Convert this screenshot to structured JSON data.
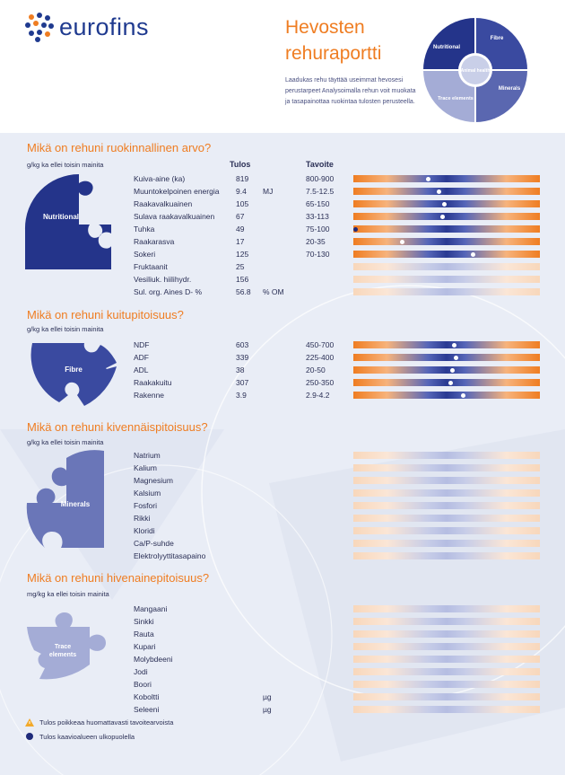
{
  "header": {
    "brand": "eurofins",
    "title_line1": "Hevosten",
    "title_line2": "rehuraportti",
    "description": "Laadukas rehu täyttää useimmat hevosesi perustarpeet Analysoimalla rehun voit muokata ja tasapainottaa ruokintaa tulosten perusteella.",
    "puzzle_labels": {
      "nutritional": "Nutritional",
      "fibre": "Fibre",
      "center": "Animal health",
      "minerals": "Minerals",
      "trace": "Trace elements"
    }
  },
  "nutrition": {
    "title": "Mikä on rehuni ruokinnallinen arvo?",
    "unit_note": "g/kg ka ellei toisin mainita",
    "col_result": "Tulos",
    "col_target": "Tavoite",
    "icon_label": "Nutritional",
    "rows": [
      {
        "name": "Kuiva-aine (ka)",
        "value": "819",
        "unit": "",
        "target": "800-900",
        "bar": "strong",
        "marker": 0.4,
        "out": false
      },
      {
        "name": "Muuntokelpoinen energia",
        "value": "9.4",
        "unit": "MJ",
        "target": "7.5-12.5",
        "bar": "strong",
        "marker": 0.46,
        "out": false
      },
      {
        "name": "Raakavalkuainen",
        "value": "105",
        "unit": "",
        "target": "65-150",
        "bar": "strong",
        "marker": 0.49,
        "out": false
      },
      {
        "name": "Sulava raakavalkuainen",
        "value": "67",
        "unit": "",
        "target": "33-113",
        "bar": "strong",
        "marker": 0.48,
        "out": false
      },
      {
        "name": "Tuhka",
        "value": "49",
        "unit": "",
        "target": "75-100",
        "bar": "strong",
        "marker": 0.01,
        "out": true
      },
      {
        "name": "Raakarasva",
        "value": "17",
        "unit": "",
        "target": "20-35",
        "bar": "strong",
        "marker": 0.26,
        "out": false
      },
      {
        "name": "Sokeri",
        "value": "125",
        "unit": "",
        "target": "70-130",
        "bar": "strong",
        "marker": 0.64,
        "out": false
      },
      {
        "name": "Fruktaanit",
        "value": "25",
        "unit": "",
        "target": "",
        "bar": "faint",
        "marker": null,
        "out": false
      },
      {
        "name": "Vesiliuk. hiilihydr.",
        "value": "156",
        "unit": "",
        "target": "",
        "bar": "faint",
        "marker": null,
        "out": false
      },
      {
        "name": "Sul. org. Aines D- %",
        "value": "56.8",
        "unit": "% OM",
        "target": "",
        "bar": "faint",
        "marker": null,
        "out": false
      }
    ]
  },
  "fibre": {
    "title": "Mikä on rehuni kuitupitoisuus?",
    "unit_note": "g/kg ka ellei toisin mainita",
    "icon_label": "Fibre",
    "rows": [
      {
        "name": "NDF",
        "value": "603",
        "unit": "",
        "target": "450-700",
        "bar": "strong",
        "marker": 0.54,
        "out": false
      },
      {
        "name": "ADF",
        "value": "339",
        "unit": "",
        "target": "225-400",
        "bar": "strong",
        "marker": 0.55,
        "out": false
      },
      {
        "name": "ADL",
        "value": "38",
        "unit": "",
        "target": "20-50",
        "bar": "strong",
        "marker": 0.53,
        "out": false
      },
      {
        "name": "Raakakuitu",
        "value": "307",
        "unit": "",
        "target": "250-350",
        "bar": "strong",
        "marker": 0.52,
        "out": false
      },
      {
        "name": "Rakenne",
        "value": "3.9",
        "unit": "",
        "target": "2.9-4.2",
        "bar": "strong",
        "marker": 0.59,
        "out": false
      }
    ]
  },
  "minerals": {
    "title": "Mikä on rehuni kivennäispitoisuus?",
    "unit_note": "g/kg ka ellei toisin mainita",
    "icon_label": "Minerals",
    "rows": [
      {
        "name": "Natrium",
        "value": "",
        "unit": "",
        "target": "",
        "bar": "faint",
        "marker": null,
        "out": false
      },
      {
        "name": "Kalium",
        "value": "",
        "unit": "",
        "target": "",
        "bar": "faint",
        "marker": null,
        "out": false
      },
      {
        "name": "Magnesium",
        "value": "",
        "unit": "",
        "target": "",
        "bar": "faint",
        "marker": null,
        "out": false
      },
      {
        "name": "Kalsium",
        "value": "",
        "unit": "",
        "target": "",
        "bar": "faint",
        "marker": null,
        "out": false
      },
      {
        "name": "Fosfori",
        "value": "",
        "unit": "",
        "target": "",
        "bar": "faint",
        "marker": null,
        "out": false
      },
      {
        "name": "Rikki",
        "value": "",
        "unit": "",
        "target": "",
        "bar": "faint",
        "marker": null,
        "out": false
      },
      {
        "name": "Kloridi",
        "value": "",
        "unit": "",
        "target": "",
        "bar": "faint",
        "marker": null,
        "out": false
      },
      {
        "name": "Ca/P-suhde",
        "value": "",
        "unit": "",
        "target": "",
        "bar": "faint",
        "marker": null,
        "out": false
      },
      {
        "name": "Elektrolyyttitasapaino",
        "value": "",
        "unit": "",
        "target": "",
        "bar": "faint",
        "marker": null,
        "out": false
      }
    ]
  },
  "trace": {
    "title": "Mikä on rehuni hivenainepitoisuus?",
    "unit_note": "mg/kg ka ellei toisin mainita",
    "icon_label": "Trace elements",
    "rows": [
      {
        "name": "Mangaani",
        "value": "",
        "unit": "",
        "target": "",
        "bar": "faint",
        "marker": null,
        "out": false
      },
      {
        "name": "Sinkki",
        "value": "",
        "unit": "",
        "target": "",
        "bar": "faint",
        "marker": null,
        "out": false
      },
      {
        "name": "Rauta",
        "value": "",
        "unit": "",
        "target": "",
        "bar": "faint",
        "marker": null,
        "out": false
      },
      {
        "name": "Kupari",
        "value": "",
        "unit": "",
        "target": "",
        "bar": "faint",
        "marker": null,
        "out": false
      },
      {
        "name": "Molybdeeni",
        "value": "",
        "unit": "",
        "target": "",
        "bar": "faint",
        "marker": null,
        "out": false
      },
      {
        "name": "Jodi",
        "value": "",
        "unit": "",
        "target": "",
        "bar": "faint",
        "marker": null,
        "out": false
      },
      {
        "name": "Boori",
        "value": "",
        "unit": "",
        "target": "",
        "bar": "faint",
        "marker": null,
        "out": false
      },
      {
        "name": "Koboltti",
        "value": "",
        "unit": "µg",
        "target": "",
        "bar": "faint",
        "marker": null,
        "out": false
      },
      {
        "name": "Seleeni",
        "value": "",
        "unit": "µg",
        "target": "",
        "bar": "faint",
        "marker": null,
        "out": false
      }
    ]
  },
  "legend": {
    "warning_text": "Tulos poikkeaa huomattavasti tavoitearvoista",
    "outside_text": "Tulos kaavioalueen ulkopuolella"
  },
  "colors": {
    "orange": "#ef7d22",
    "navy": "#1f3a8f",
    "nutritional": "#24348a",
    "fibre": "#3a4aa0",
    "minerals": "#6a76b8",
    "trace": "#a4acd6"
  }
}
